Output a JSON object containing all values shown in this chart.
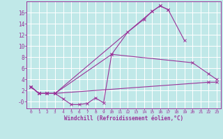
{
  "background_color": "#c0e8e8",
  "grid_color": "#ffffff",
  "line_color": "#993399",
  "xlabel": "Windchill (Refroidissement éolien,°C)",
  "xlim": [
    -0.5,
    23.5
  ],
  "ylim": [
    -1.2,
    18.0
  ],
  "xticks": [
    0,
    1,
    2,
    3,
    4,
    5,
    6,
    7,
    8,
    9,
    10,
    11,
    12,
    13,
    14,
    15,
    16,
    17,
    18,
    19,
    20,
    21,
    22,
    23
  ],
  "ytick_vals": [
    0,
    2,
    4,
    6,
    8,
    10,
    12,
    14,
    16
  ],
  "ytick_labels": [
    "-0",
    "2",
    "4",
    "6",
    "8",
    "10",
    "12",
    "14",
    "16"
  ],
  "line1_x": [
    0,
    1,
    2,
    3,
    4,
    5,
    6,
    7,
    8,
    9,
    10,
    12,
    14,
    15,
    16,
    17
  ],
  "line1_y": [
    2.7,
    1.5,
    1.5,
    1.5,
    0.5,
    -0.5,
    -0.5,
    -0.3,
    0.7,
    -0.2,
    8.5,
    12.5,
    14.8,
    16.2,
    17.2,
    16.5
  ],
  "line2_x": [
    0,
    1,
    2,
    3,
    15,
    16,
    17,
    19
  ],
  "line2_y": [
    2.7,
    1.5,
    1.5,
    1.5,
    16.2,
    17.2,
    16.5,
    11.0
  ],
  "line3_x": [
    0,
    1,
    2,
    3,
    10,
    20,
    22,
    23
  ],
  "line3_y": [
    2.7,
    1.5,
    1.5,
    1.5,
    8.5,
    7.0,
    5.0,
    4.0
  ],
  "line4_x": [
    0,
    1,
    2,
    3,
    22,
    23
  ],
  "line4_y": [
    2.7,
    1.5,
    1.5,
    1.5,
    3.5,
    3.5
  ]
}
